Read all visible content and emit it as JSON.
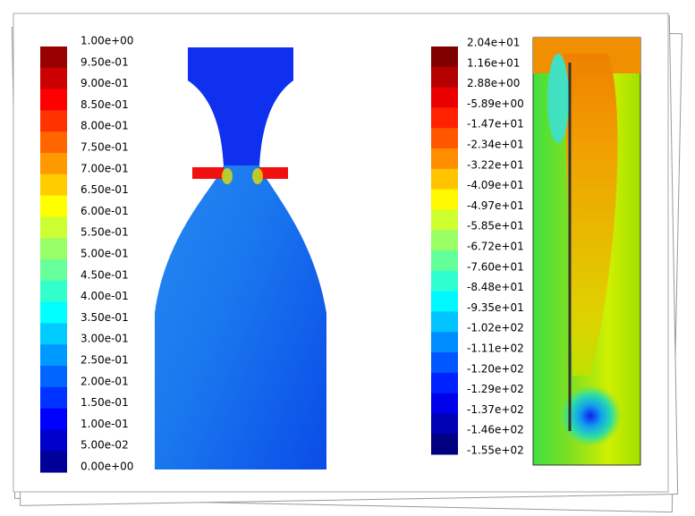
{
  "left_colorbar": {
    "labels": [
      "1.00e+00",
      "9.50e-01",
      "9.00e-01",
      "8.50e-01",
      "8.00e-01",
      "7.50e-01",
      "7.00e-01",
      "6.50e-01",
      "6.00e-01",
      "5.50e-01",
      "5.00e-01",
      "4.50e-01",
      "4.00e-01",
      "3.50e-01",
      "3.00e-01",
      "2.50e-01",
      "2.00e-01",
      "1.50e-01",
      "1.00e-01",
      "5.00e-02",
      "0.00e+00"
    ]
  },
  "right_colorbar": {
    "labels": [
      "2.04e+01",
      "1.16e+01",
      "2.88e+00",
      "-5.89e+00",
      "-1.47e+01",
      "-2.34e+01",
      "-3.22e+01",
      "-4.09e+01",
      "-4.97e+01",
      "-5.85e+01",
      "-6.72e+01",
      "-7.60e+01",
      "-8.48e+01",
      "-9.35e+01",
      "-1.02e+02",
      "-1.11e+02",
      "-1.20e+02",
      "-1.29e+02",
      "-1.37e+02",
      "-1.46e+02",
      "-1.55e+02"
    ]
  }
}
